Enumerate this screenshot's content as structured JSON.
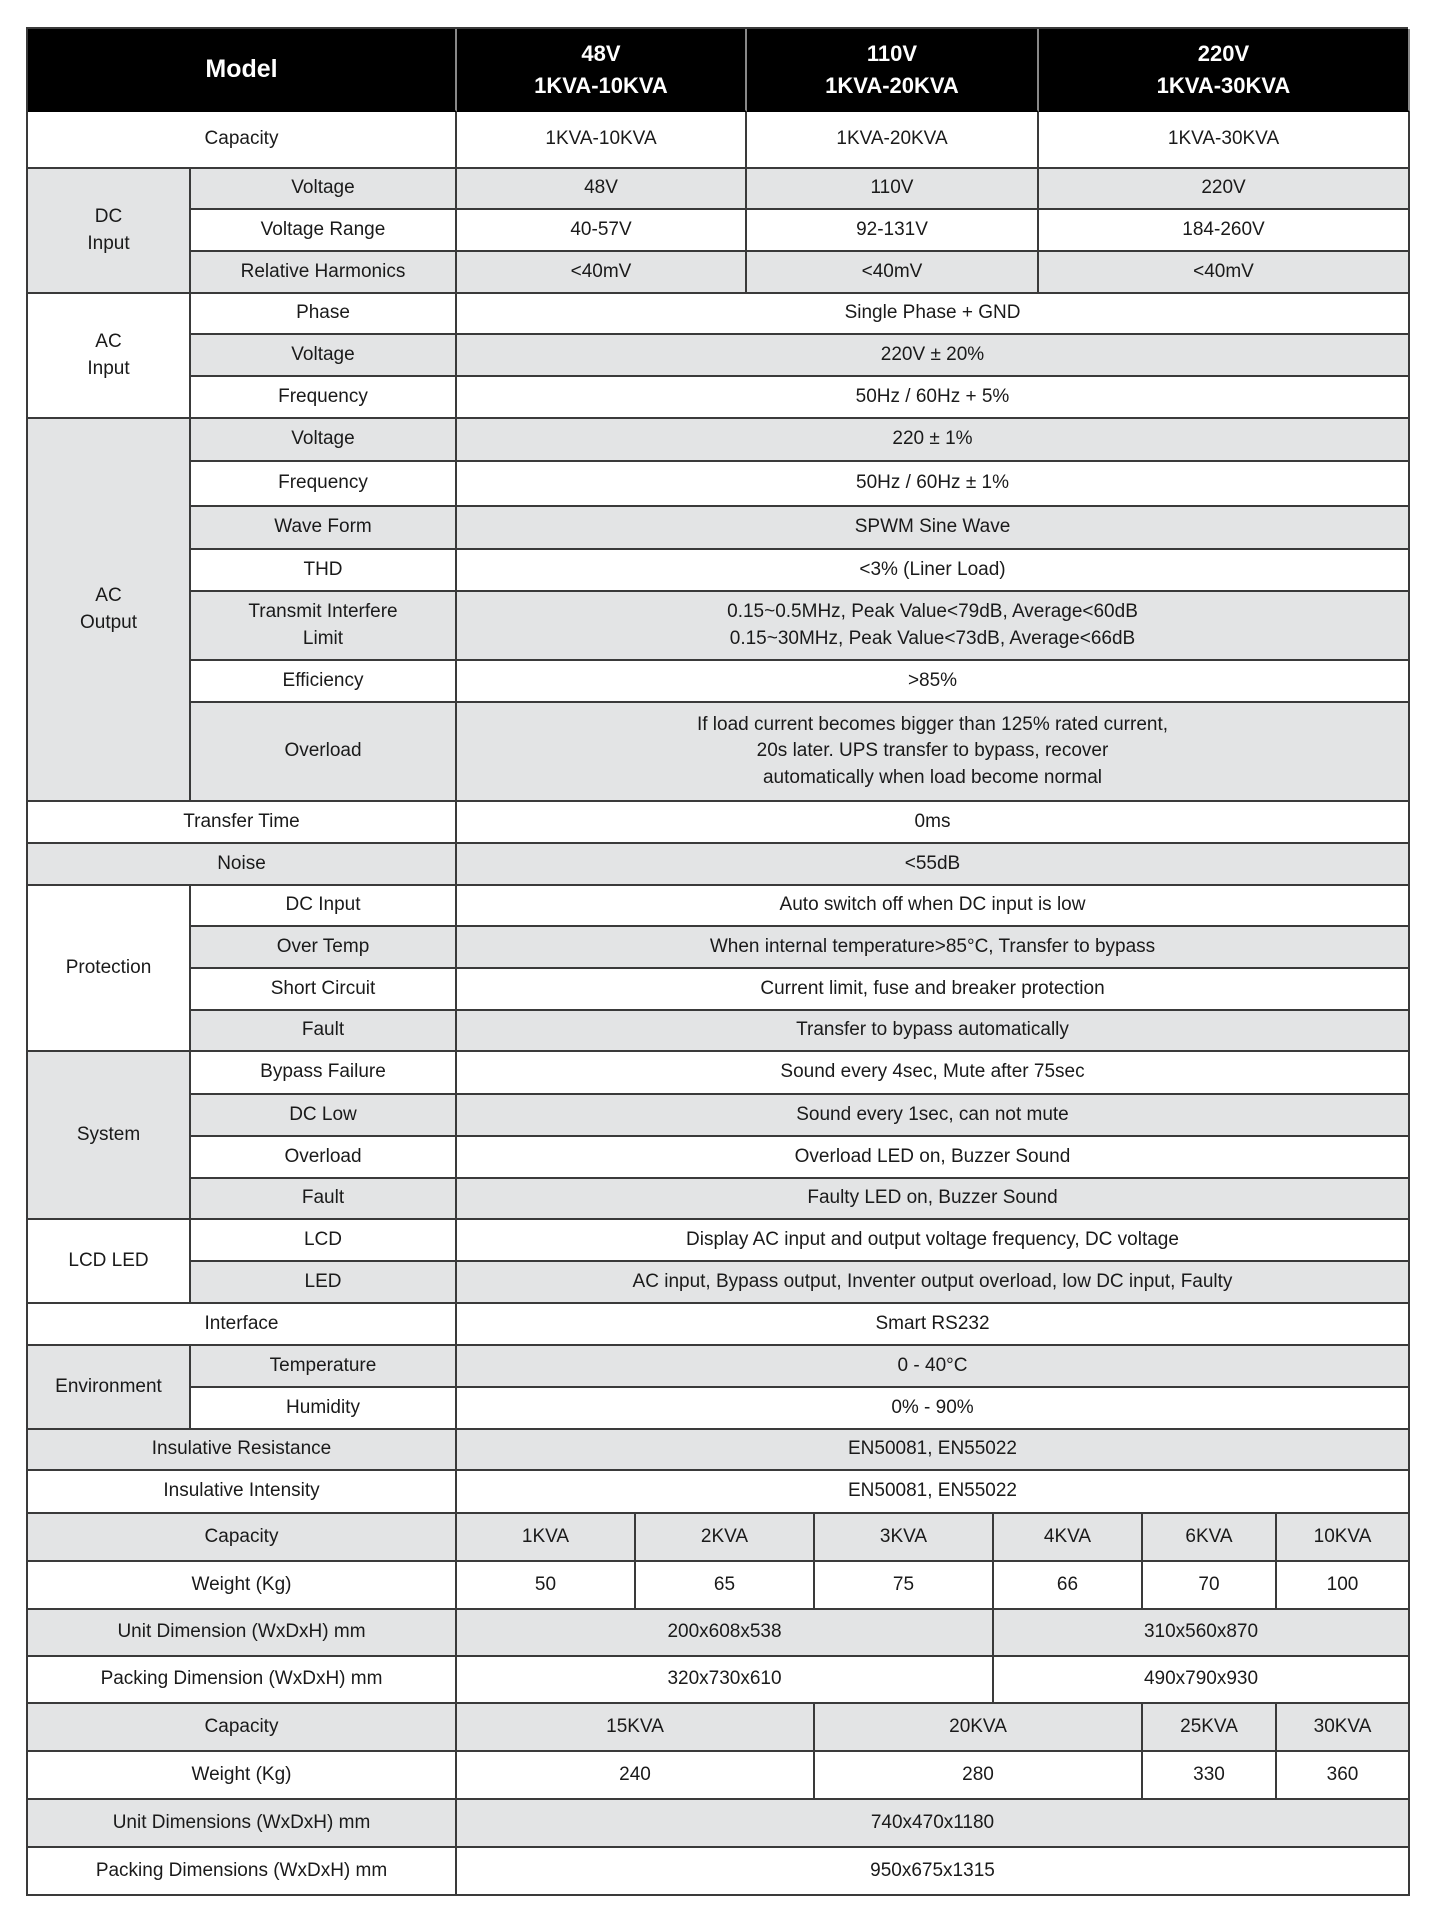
{
  "header": {
    "model": "Model",
    "columns": [
      "48V\n1KVA-10KVA",
      "110V\n1KVA-20KVA",
      "220V\n1KVA-30KVA"
    ]
  },
  "capacity": {
    "label": "Capacity",
    "values": [
      "1KVA-10KVA",
      "1KVA-20KVA",
      "1KVA-30KVA"
    ]
  },
  "dc_input": {
    "label": "DC\nInput",
    "rows": [
      {
        "label": "Voltage",
        "values": [
          "48V",
          "110V",
          "220V"
        ]
      },
      {
        "label": "Voltage Range",
        "values": [
          "40-57V",
          "92-131V",
          "184-260V"
        ]
      },
      {
        "label": "Relative Harmonics",
        "values": [
          "<40mV",
          "<40mV",
          "<40mV"
        ]
      }
    ]
  },
  "ac_input": {
    "label": "AC\nInput",
    "rows": [
      {
        "label": "Phase",
        "value": "Single Phase + GND"
      },
      {
        "label": "Voltage",
        "value": "220V ± 20%"
      },
      {
        "label": "Frequency",
        "value": "50Hz / 60Hz + 5%"
      }
    ]
  },
  "ac_output": {
    "label": "AC\nOutput",
    "rows": [
      {
        "label": "Voltage",
        "value": "220 ± 1%"
      },
      {
        "label": "Frequency",
        "value": "50Hz / 60Hz ± 1%"
      },
      {
        "label": "Wave Form",
        "value": "SPWM Sine Wave"
      },
      {
        "label": "THD",
        "value": "<3% (Liner Load)"
      },
      {
        "label": "Transmit Interfere\nLimit",
        "value": "0.15~0.5MHz, Peak Value<79dB, Average<60dB\n0.15~30MHz, Peak Value<73dB, Average<66dB"
      },
      {
        "label": "Efficiency",
        "value": ">85%"
      },
      {
        "label": "Overload",
        "value": "If load current becomes bigger than 125% rated current,\n20s later. UPS transfer to bypass, recover\nautomatically when load become normal"
      }
    ]
  },
  "transfer_time": {
    "label": "Transfer Time",
    "value": "0ms"
  },
  "noise": {
    "label": "Noise",
    "value": "<55dB"
  },
  "protection": {
    "label": "Protection",
    "rows": [
      {
        "label": "DC Input",
        "value": "Auto switch off when DC input is low"
      },
      {
        "label": "Over Temp",
        "value": "When internal temperature>85°C, Transfer to bypass"
      },
      {
        "label": "Short Circuit",
        "value": "Current limit, fuse and breaker protection"
      },
      {
        "label": "Fault",
        "value": "Transfer to bypass automatically"
      }
    ]
  },
  "system": {
    "label": "System",
    "rows": [
      {
        "label": "Bypass Failure",
        "value": "Sound every 4sec, Mute after 75sec"
      },
      {
        "label": "DC Low",
        "value": "Sound every 1sec, can not mute"
      },
      {
        "label": "Overload",
        "value": "Overload LED on, Buzzer Sound"
      },
      {
        "label": "Fault",
        "value": "Faulty LED on, Buzzer Sound"
      }
    ]
  },
  "lcd_led": {
    "label": "LCD LED",
    "rows": [
      {
        "label": "LCD",
        "value": "Display AC input and output voltage frequency, DC voltage"
      },
      {
        "label": "LED",
        "value": "AC input, Bypass output, Inventer output overload, low DC input, Faulty"
      }
    ]
  },
  "interface": {
    "label": "Interface",
    "value": "Smart RS232"
  },
  "environment": {
    "label": "Environment",
    "rows": [
      {
        "label": "Temperature",
        "value": "0 - 40°C"
      },
      {
        "label": "Humidity",
        "value": "0% - 90%"
      }
    ]
  },
  "insulative_resistance": {
    "label": "Insulative Resistance",
    "value": "EN50081, EN55022"
  },
  "insulative_intensity": {
    "label": "Insulative Intensity",
    "value": "EN50081, EN55022"
  },
  "group_small": {
    "capacity_label": "Capacity",
    "capacities": [
      "1KVA",
      "2KVA",
      "3KVA",
      "4KVA",
      "6KVA",
      "10KVA"
    ],
    "weight_label": "Weight (Kg)",
    "weights": [
      "50",
      "65",
      "75",
      "66",
      "70",
      "100"
    ],
    "unit_dim_label": "Unit Dimension (WxDxH) mm",
    "unit_dims": [
      "200x608x538",
      "310x560x870"
    ],
    "packing_dim_label": "Packing Dimension (WxDxH) mm",
    "packing_dims": [
      "320x730x610",
      "490x790x930"
    ]
  },
  "group_large": {
    "capacity_label": "Capacity",
    "capacities": [
      "15KVA",
      "20KVA",
      "25KVA",
      "30KVA"
    ],
    "weight_label": "Weight (Kg)",
    "weights": [
      "240",
      "280",
      "330",
      "360"
    ],
    "unit_dim_label": "Unit Dimensions (WxDxH) mm",
    "unit_dim": "740x470x1180",
    "packing_dim_label": "Packing Dimensions (WxDxH) mm",
    "packing_dim": "950x675x1315"
  },
  "colors": {
    "header_bg": "#000000",
    "row_gray": "#e3e4e5",
    "grid_line": "#3a3a3a"
  }
}
